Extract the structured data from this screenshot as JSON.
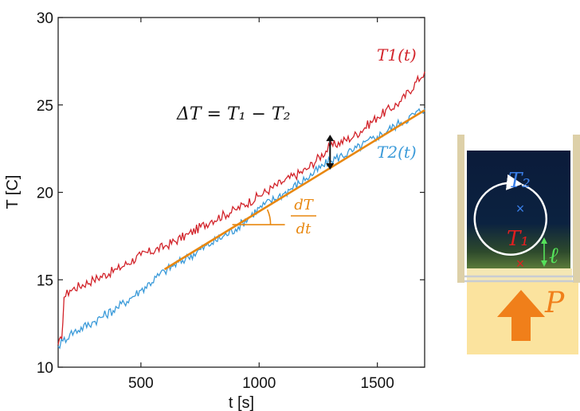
{
  "chart_data": {
    "type": "line",
    "title": "",
    "xlabel": "t [s]",
    "ylabel": "T [C]",
    "xlim": [
      150,
      1700
    ],
    "ylim": [
      10,
      30
    ],
    "x_ticks": [
      500,
      1000,
      1500
    ],
    "y_ticks": [
      10,
      15,
      20,
      25,
      30
    ],
    "grid": false,
    "series": [
      {
        "name": "T1(t)",
        "color": "#d2232a",
        "x": [
          150,
          165,
          175,
          200,
          300,
          400,
          500,
          600,
          700,
          800,
          900,
          1000,
          1100,
          1200,
          1300,
          1400,
          1500,
          1600,
          1700
        ],
        "y": [
          11.3,
          11.6,
          14.0,
          14.4,
          15.0,
          15.6,
          16.4,
          16.9,
          17.6,
          18.4,
          19.0,
          19.8,
          20.6,
          21.3,
          22.6,
          23.2,
          24.3,
          25.2,
          26.9
        ]
      },
      {
        "name": "T2(t)",
        "color": "#3a9ad9",
        "x": [
          150,
          170,
          200,
          300,
          400,
          500,
          600,
          700,
          800,
          900,
          1000,
          1100,
          1200,
          1300,
          1400,
          1500,
          1600,
          1700
        ],
        "y": [
          11.2,
          11.5,
          11.9,
          12.6,
          13.4,
          14.4,
          15.5,
          16.3,
          17.1,
          17.9,
          19.1,
          19.9,
          20.8,
          21.8,
          22.4,
          23.2,
          24.0,
          24.8
        ]
      }
    ],
    "fit_line": {
      "color": "#e8870f",
      "x": [
        600,
        1700
      ],
      "y": [
        15.6,
        24.7
      ]
    },
    "annotations": {
      "delta_T": {
        "label": "ΔT = T₁ − T₂",
        "x": 1300,
        "y_top": 23.3,
        "y_bottom": 21.3
      },
      "slope_label": {
        "numerator": "dT",
        "denominator": "dt",
        "color": "#e8870f"
      }
    }
  },
  "inset": {
    "labels": {
      "t2": "T₂",
      "t1": "T₁",
      "ell": "ℓ",
      "p": "P"
    },
    "colors": {
      "fluid_top": "#0b1b3a",
      "fluid_bottom": "#3c5f2d",
      "base": "#fbe39e",
      "wall": "#ddd0a8",
      "arrow": "#f07f1a",
      "t2": "#3a7fe8",
      "t1": "#e02020",
      "ell": "#55e15a"
    }
  }
}
